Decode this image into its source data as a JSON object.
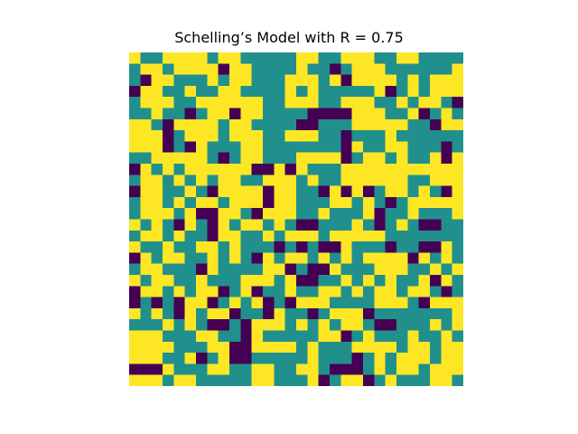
{
  "chart_data": {
    "type": "heatmap",
    "title": "Schelling’s Model with R = 0.75",
    "grid": false,
    "axes_visible": false,
    "colors": {
      "empty": "#440154",
      "group_a": "#21908d",
      "group_b": "#fde725"
    },
    "cell_legend": {
      "0": "empty",
      "1": "group_a",
      "2": "group_b"
    },
    "rows": 30,
    "cols": 30,
    "cells": [
      [
        2,
        1,
        1,
        2,
        2,
        2,
        2,
        1,
        2,
        2,
        1,
        1,
        1,
        1,
        1,
        2,
        2,
        1,
        1,
        2,
        2,
        2,
        1,
        1,
        2,
        2,
        1,
        1,
        1,
        1
      ],
      [
        1,
        2,
        2,
        1,
        2,
        2,
        2,
        2,
        0,
        2,
        2,
        1,
        1,
        1,
        1,
        2,
        1,
        1,
        0,
        1,
        2,
        2,
        2,
        1,
        1,
        1,
        1,
        1,
        1,
        2
      ],
      [
        1,
        0,
        2,
        2,
        1,
        1,
        1,
        2,
        1,
        2,
        2,
        1,
        1,
        1,
        2,
        2,
        2,
        1,
        2,
        0,
        2,
        2,
        2,
        2,
        1,
        2,
        1,
        2,
        2,
        2
      ],
      [
        0,
        2,
        2,
        1,
        1,
        2,
        1,
        1,
        2,
        2,
        1,
        1,
        1,
        1,
        2,
        1,
        2,
        1,
        1,
        1,
        1,
        1,
        2,
        0,
        1,
        2,
        1,
        2,
        2,
        2
      ],
      [
        1,
        2,
        2,
        2,
        1,
        1,
        2,
        2,
        2,
        2,
        2,
        2,
        1,
        1,
        2,
        2,
        2,
        1,
        1,
        2,
        2,
        2,
        1,
        1,
        2,
        1,
        2,
        2,
        1,
        0
      ],
      [
        1,
        1,
        2,
        1,
        1,
        0,
        1,
        2,
        2,
        0,
        2,
        2,
        1,
        1,
        1,
        1,
        0,
        0,
        0,
        0,
        2,
        2,
        2,
        1,
        1,
        2,
        0,
        1,
        2,
        1
      ],
      [
        2,
        2,
        1,
        0,
        2,
        2,
        2,
        2,
        1,
        2,
        2,
        1,
        1,
        1,
        1,
        0,
        0,
        1,
        1,
        1,
        2,
        2,
        2,
        2,
        2,
        1,
        1,
        0,
        2,
        2
      ],
      [
        2,
        2,
        2,
        0,
        1,
        2,
        2,
        2,
        1,
        2,
        2,
        2,
        1,
        1,
        2,
        2,
        2,
        1,
        1,
        0,
        1,
        1,
        1,
        2,
        1,
        1,
        1,
        1,
        1,
        1
      ],
      [
        2,
        2,
        2,
        0,
        1,
        0,
        2,
        1,
        1,
        1,
        2,
        2,
        1,
        1,
        1,
        1,
        1,
        1,
        1,
        0,
        2,
        1,
        1,
        2,
        2,
        1,
        1,
        1,
        0,
        1
      ],
      [
        1,
        1,
        2,
        2,
        2,
        2,
        2,
        1,
        0,
        1,
        2,
        2,
        1,
        1,
        1,
        2,
        2,
        2,
        2,
        0,
        1,
        2,
        2,
        1,
        2,
        1,
        1,
        2,
        0,
        2
      ],
      [
        0,
        2,
        1,
        2,
        1,
        2,
        2,
        2,
        2,
        2,
        2,
        0,
        0,
        2,
        0,
        2,
        1,
        1,
        1,
        2,
        2,
        2,
        2,
        2,
        2,
        2,
        2,
        2,
        2,
        2
      ],
      [
        1,
        2,
        2,
        1,
        2,
        1,
        2,
        1,
        2,
        2,
        1,
        1,
        2,
        2,
        2,
        1,
        2,
        1,
        1,
        2,
        2,
        2,
        2,
        2,
        2,
        1,
        1,
        2,
        2,
        2
      ],
      [
        0,
        2,
        2,
        1,
        1,
        2,
        1,
        0,
        2,
        2,
        2,
        2,
        0,
        2,
        2,
        1,
        1,
        0,
        2,
        0,
        2,
        0,
        1,
        2,
        2,
        1,
        2,
        1,
        0,
        2
      ],
      [
        1,
        2,
        2,
        1,
        2,
        1,
        2,
        2,
        1,
        2,
        2,
        2,
        0,
        2,
        2,
        1,
        1,
        1,
        2,
        2,
        1,
        2,
        1,
        0,
        1,
        2,
        2,
        2,
        2,
        2
      ],
      [
        1,
        2,
        2,
        2,
        1,
        2,
        0,
        0,
        2,
        2,
        1,
        0,
        2,
        2,
        2,
        1,
        1,
        2,
        1,
        1,
        1,
        2,
        0,
        1,
        1,
        2,
        1,
        1,
        1,
        2
      ],
      [
        2,
        1,
        2,
        1,
        0,
        2,
        1,
        0,
        2,
        1,
        2,
        2,
        1,
        2,
        1,
        0,
        0,
        1,
        1,
        1,
        2,
        1,
        0,
        1,
        2,
        1,
        0,
        0,
        1,
        1
      ],
      [
        1,
        2,
        2,
        1,
        2,
        1,
        1,
        0,
        2,
        2,
        1,
        1,
        2,
        1,
        2,
        2,
        2,
        1,
        2,
        2,
        2,
        2,
        2,
        1,
        1,
        1,
        1,
        1,
        1,
        1
      ],
      [
        2,
        1,
        1,
        2,
        1,
        1,
        2,
        2,
        1,
        2,
        1,
        1,
        1,
        0,
        1,
        0,
        1,
        0,
        0,
        2,
        1,
        1,
        1,
        0,
        1,
        1,
        0,
        0,
        2,
        1
      ],
      [
        0,
        2,
        1,
        2,
        2,
        1,
        1,
        2,
        1,
        2,
        1,
        0,
        2,
        1,
        2,
        2,
        1,
        2,
        1,
        2,
        1,
        2,
        2,
        2,
        2,
        0,
        2,
        1,
        2,
        1
      ],
      [
        1,
        2,
        2,
        1,
        1,
        1,
        0,
        2,
        1,
        1,
        1,
        1,
        2,
        2,
        0,
        1,
        0,
        0,
        2,
        1,
        1,
        1,
        2,
        2,
        2,
        1,
        1,
        2,
        1,
        2
      ],
      [
        2,
        1,
        2,
        2,
        1,
        1,
        2,
        1,
        1,
        1,
        2,
        2,
        2,
        1,
        2,
        0,
        0,
        1,
        1,
        2,
        1,
        2,
        1,
        2,
        1,
        1,
        2,
        0,
        2,
        1
      ],
      [
        0,
        2,
        2,
        1,
        2,
        1,
        2,
        2,
        0,
        1,
        2,
        0,
        1,
        1,
        2,
        1,
        1,
        2,
        2,
        1,
        2,
        1,
        2,
        2,
        1,
        2,
        2,
        1,
        0,
        1
      ],
      [
        0,
        1,
        0,
        1,
        0,
        2,
        2,
        0,
        1,
        2,
        1,
        2,
        0,
        1,
        0,
        2,
        2,
        2,
        1,
        1,
        1,
        1,
        2,
        2,
        2,
        1,
        0,
        2,
        2,
        2
      ],
      [
        2,
        1,
        2,
        1,
        0,
        2,
        1,
        2,
        2,
        0,
        1,
        1,
        0,
        2,
        1,
        1,
        0,
        1,
        2,
        2,
        2,
        0,
        1,
        1,
        1,
        1,
        1,
        1,
        1,
        2
      ],
      [
        1,
        1,
        1,
        2,
        1,
        2,
        1,
        0,
        0,
        1,
        0,
        2,
        2,
        2,
        1,
        2,
        1,
        2,
        1,
        2,
        2,
        1,
        0,
        0,
        1,
        1,
        1,
        2,
        1,
        2
      ],
      [
        2,
        2,
        2,
        1,
        1,
        1,
        2,
        2,
        1,
        1,
        0,
        2,
        1,
        1,
        1,
        1,
        1,
        2,
        2,
        0,
        1,
        2,
        1,
        1,
        1,
        2,
        1,
        1,
        2,
        1
      ],
      [
        2,
        2,
        2,
        2,
        1,
        1,
        1,
        2,
        2,
        0,
        0,
        2,
        2,
        2,
        2,
        1,
        2,
        1,
        1,
        1,
        2,
        2,
        2,
        2,
        1,
        2,
        2,
        1,
        2,
        2
      ],
      [
        2,
        2,
        2,
        1,
        1,
        2,
        0,
        1,
        2,
        0,
        0,
        1,
        1,
        1,
        1,
        1,
        2,
        1,
        1,
        1,
        0,
        1,
        2,
        1,
        2,
        2,
        2,
        1,
        2,
        2
      ],
      [
        0,
        0,
        0,
        2,
        1,
        1,
        1,
        2,
        2,
        1,
        1,
        2,
        2,
        1,
        1,
        2,
        2,
        1,
        0,
        0,
        0,
        1,
        2,
        1,
        2,
        2,
        1,
        2,
        2,
        2
      ],
      [
        2,
        2,
        2,
        1,
        2,
        2,
        1,
        1,
        1,
        1,
        1,
        2,
        2,
        1,
        1,
        1,
        2,
        0,
        1,
        2,
        2,
        0,
        1,
        2,
        1,
        1,
        1,
        2,
        2,
        1
      ]
    ]
  }
}
